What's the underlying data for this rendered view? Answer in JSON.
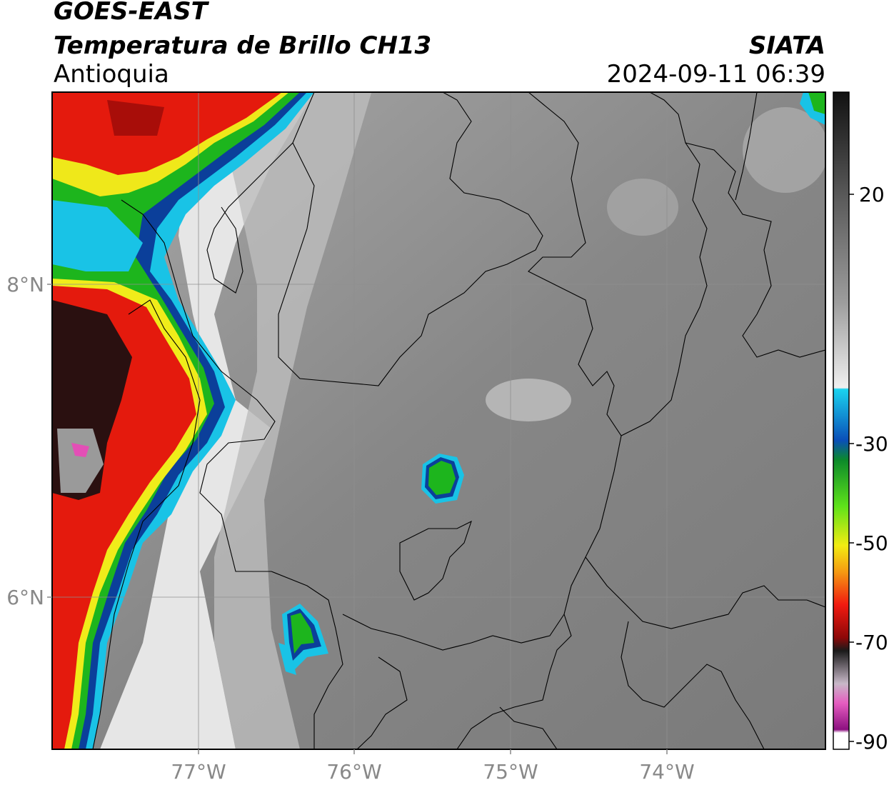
{
  "header": {
    "satellite": "GOES-EAST",
    "product": "Temperatura de Brillo CH13",
    "region": "Antioquia",
    "organization": "SIATA",
    "timestamp": "2024-09-11 06:39"
  },
  "axes": {
    "lat_labels": [
      "8°N",
      "6°N"
    ],
    "lon_labels": [
      "77°W",
      "76°W",
      "75°W",
      "74°W"
    ]
  },
  "colorbar": {
    "ticks": [
      "20",
      "-30",
      "-50",
      "-70",
      "-90"
    ]
  },
  "colors": {
    "cloud_red": "#e41a0d",
    "cloud_green": "#1db51d",
    "cloud_cyan": "#19c3e6",
    "cloud_blue": "#0b3f9a",
    "magenta": "#e34fb6",
    "background_gray": "#7f7f7f"
  }
}
